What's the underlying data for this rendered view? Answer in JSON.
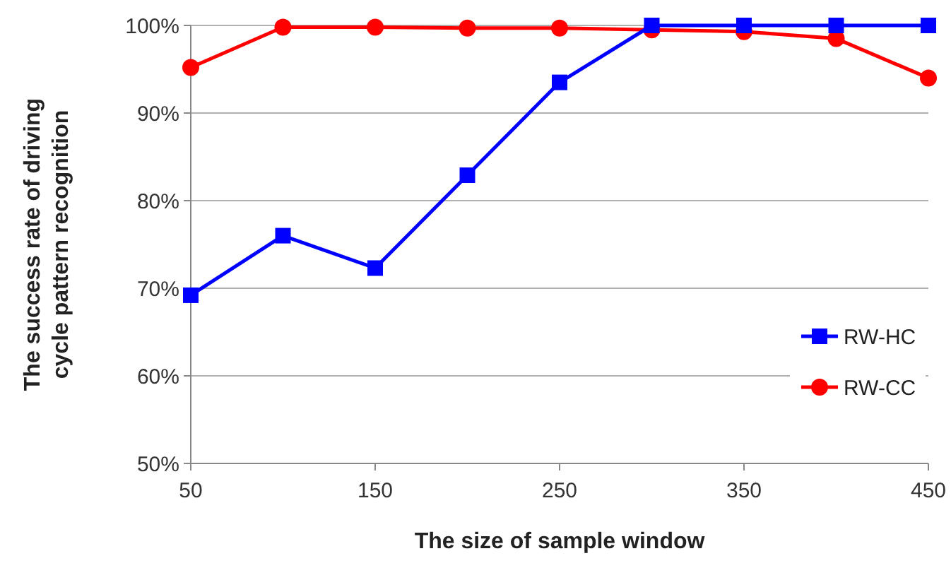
{
  "chart_data": {
    "type": "line",
    "xlabel": "The size of sample window",
    "ylabel": "The success rate of driving cycle pattern recognition",
    "x": [
      50,
      100,
      150,
      200,
      250,
      300,
      350,
      400,
      450
    ],
    "series": [
      {
        "name": "RW-HC",
        "color": "#0000ff",
        "marker": "square",
        "values": [
          69.2,
          76.0,
          72.3,
          82.9,
          93.5,
          100,
          100,
          100,
          100
        ]
      },
      {
        "name": "RW-CC",
        "color": "#ff0000",
        "marker": "circle",
        "values": [
          95.2,
          99.8,
          99.8,
          99.7,
          99.7,
          99.5,
          99.3,
          98.5,
          94.0
        ]
      }
    ],
    "xlim": [
      50,
      450
    ],
    "xticks": [
      50,
      150,
      250,
      350,
      450
    ],
    "ylim": [
      50,
      100
    ],
    "yticks": [
      {
        "value": 50,
        "label": "50%"
      },
      {
        "value": 60,
        "label": "60%"
      },
      {
        "value": 70,
        "label": "70%"
      },
      {
        "value": 80,
        "label": "80%"
      },
      {
        "value": 90,
        "label": "90%"
      },
      {
        "value": 100,
        "label": "100%"
      }
    ],
    "grid": "y",
    "legend": "bottom right"
  }
}
